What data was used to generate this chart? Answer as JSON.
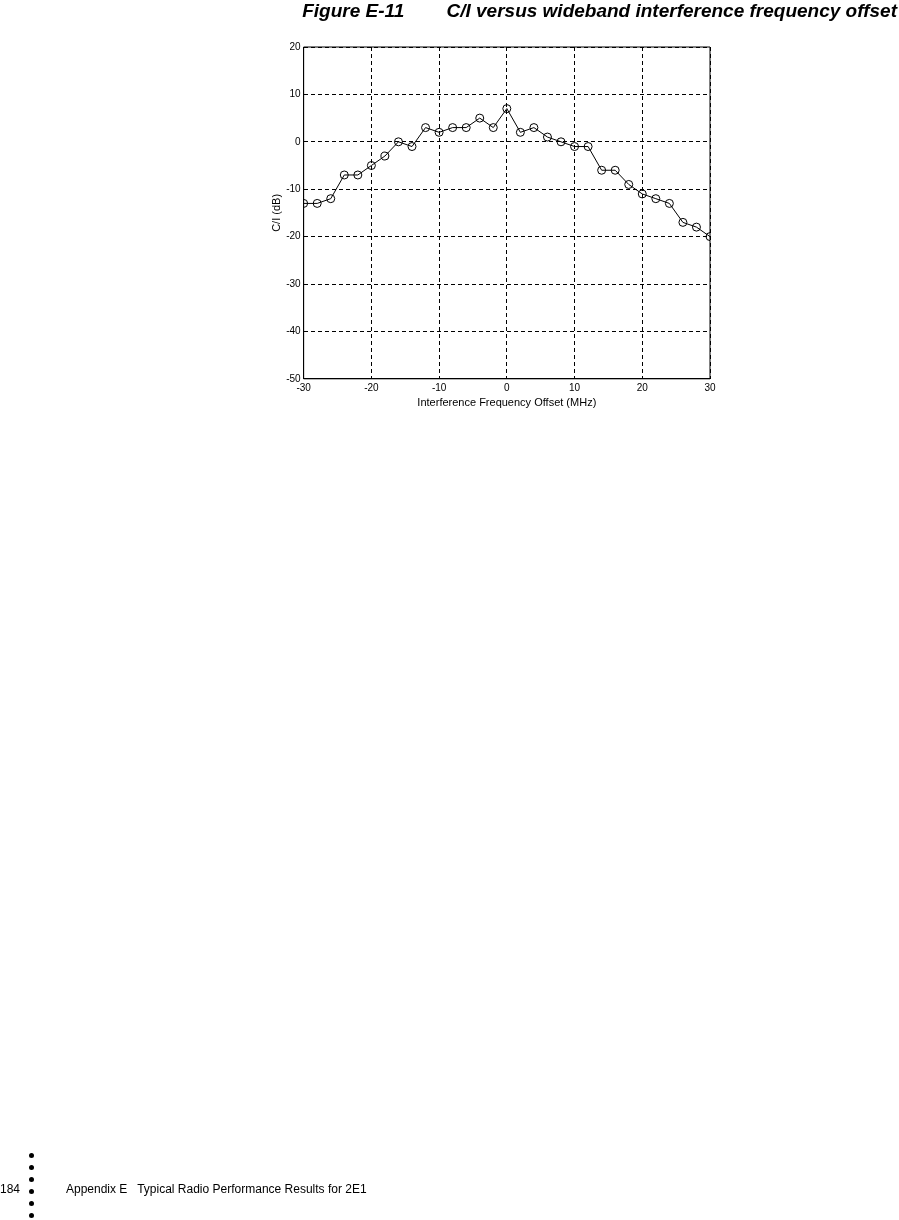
{
  "chart_data": {
    "type": "line",
    "title": "Figure E-11        C/I versus wideband interference frequency offset",
    "xlabel": "Interference Frequency Offset (MHz)",
    "ylabel": "C/I (dB)",
    "x": [
      -30,
      -28,
      -26,
      -24,
      -22,
      -20,
      -18,
      -16,
      -14,
      -12,
      -10,
      -8,
      -6,
      -4,
      -2,
      0,
      2,
      4,
      6,
      8,
      10,
      12,
      14,
      16,
      18,
      20,
      22,
      24,
      26,
      28,
      30
    ],
    "series": [
      {
        "color": "#000000",
        "values": [
          -13,
          -13,
          -12,
          -7,
          -7,
          -5,
          -3,
          0,
          -1,
          3,
          2,
          3,
          3,
          5,
          3,
          7,
          2,
          3,
          1,
          0,
          -1,
          -1,
          -6,
          -6,
          -9,
          -11,
          -12,
          -13,
          -17,
          -18,
          -20
        ]
      }
    ],
    "xlim": [
      -30,
      30
    ],
    "xticks": [
      -30,
      -20,
      -10,
      0,
      10,
      20,
      30
    ],
    "ylim": [
      -50,
      20
    ],
    "yticks": [
      -50,
      -40,
      -30,
      -20,
      -10,
      0,
      10,
      20
    ],
    "grid": true,
    "legend": false,
    "marker": "circle",
    "line_style": "solid",
    "annotations": [
      "184",
      "Appendix E   Typical Radio Performance Results for 2E1"
    ]
  }
}
